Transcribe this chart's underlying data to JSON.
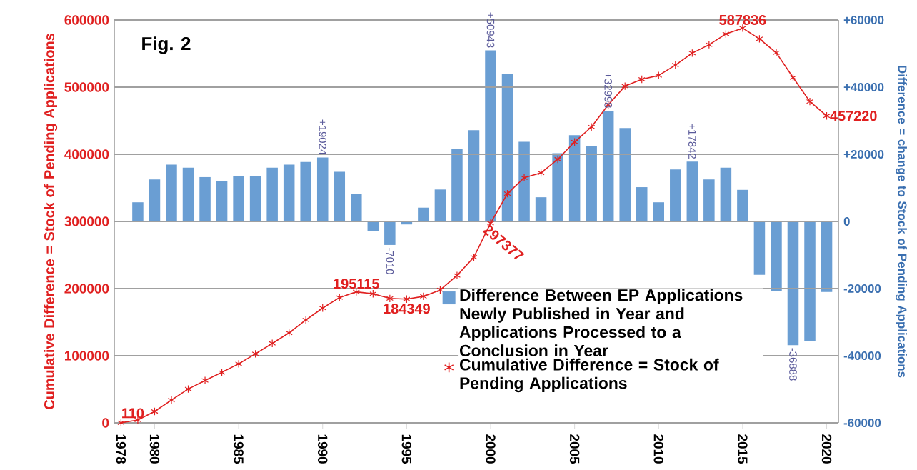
{
  "chart_data": {
    "type": "line",
    "title": "Fig. 2",
    "ylabel": "Cumulative Difference = Stock of Pending Applications",
    "y2label": "Difference = change to Stock of Pending Applications",
    "xlim": [
      1977.6,
      2020.7
    ],
    "xticks": [
      1978,
      1980,
      1985,
      1990,
      1995,
      2000,
      2005,
      2010,
      2015,
      2020
    ],
    "ylim": [
      0,
      600000
    ],
    "yticks": [
      0,
      100000,
      200000,
      300000,
      400000,
      500000,
      600000
    ],
    "y2lim": [
      -60000,
      60000
    ],
    "y2ticks": [
      {
        "value": -60000,
        "label": "-60000"
      },
      {
        "value": -40000,
        "label": "-40000"
      },
      {
        "value": -20000,
        "label": "-20000"
      },
      0,
      {
        "value": 20000,
        "label": "+20000"
      },
      {
        "value": 40000,
        "label": "+40000"
      },
      {
        "value": 60000,
        "label": "+60000"
      }
    ],
    "grid": "y",
    "legend": "bottom",
    "series": [
      {
        "name": "Difference Between EP Applications Newly Published in Year and Applications Processed to a Conclusion in Year",
        "type": "bar",
        "axis": "y2",
        "color": "#6a9ed3",
        "x": [
          1979,
          1980,
          1981,
          1982,
          1983,
          1984,
          1985,
          1986,
          1987,
          1988,
          1989,
          1990,
          1991,
          1992,
          1993,
          1994,
          1995,
          1996,
          1997,
          1998,
          1999,
          2000,
          2001,
          2002,
          2003,
          2004,
          2005,
          2006,
          2007,
          2008,
          2009,
          2010,
          2011,
          2012,
          2013,
          2014,
          2015,
          2016,
          2017,
          2018,
          2019,
          2020
        ],
        "values": [
          5700,
          12500,
          16900,
          16000,
          13200,
          11900,
          13600,
          13600,
          16000,
          16900,
          17700,
          19024,
          14800,
          8100,
          -2800,
          -7010,
          -900,
          4100,
          9500,
          21600,
          27200,
          50943,
          44000,
          23700,
          7200,
          20300,
          25700,
          22400,
          32998,
          27800,
          10200,
          5700,
          15500,
          17842,
          12500,
          16000,
          9400,
          -15900,
          -20700,
          -36888,
          -35700,
          -21000
        ],
        "value_labels": [
          null,
          null,
          null,
          null,
          null,
          null,
          null,
          null,
          null,
          null,
          null,
          "+19024",
          null,
          null,
          null,
          "-7010",
          null,
          null,
          null,
          null,
          null,
          "+50943",
          null,
          null,
          null,
          null,
          null,
          null,
          "+32998",
          null,
          null,
          null,
          null,
          "+17842",
          null,
          null,
          null,
          null,
          null,
          "-36888",
          null,
          null
        ]
      },
      {
        "name": "Cumulative Difference = Stock of Pending Applications",
        "color": "#e02020",
        "marker": "cross",
        "line_style": "solid",
        "x": [
          1978,
          1979,
          1980,
          1981,
          1982,
          1983,
          1984,
          1985,
          1986,
          1987,
          1988,
          1989,
          1990,
          1991,
          1992,
          1993,
          1994,
          1995,
          1996,
          1997,
          1998,
          1999,
          2000,
          2001,
          2002,
          2003,
          2004,
          2005,
          2006,
          2007,
          2008,
          2009,
          2010,
          2011,
          2012,
          2013,
          2014,
          2015,
          2016,
          2017,
          2018,
          2019,
          2020
        ],
        "values": [
          110,
          4300,
          17000,
          34000,
          50400,
          63100,
          75200,
          87900,
          102800,
          118400,
          134000,
          153200,
          171000,
          186500,
          195115,
          192300,
          185300,
          184349,
          188400,
          197900,
          219500,
          246700,
          297377,
          341400,
          365100,
          372300,
          392600,
          418300,
          440700,
          473700,
          501500,
          511700,
          517400,
          532900,
          550700,
          563200,
          579200,
          587836,
          571900,
          551200,
          514300,
          478600,
          457220
        ],
        "value_labels": [
          "110",
          null,
          null,
          null,
          null,
          null,
          null,
          null,
          null,
          null,
          null,
          null,
          null,
          null,
          "195115",
          null,
          null,
          "184349",
          null,
          null,
          null,
          null,
          "297377",
          null,
          null,
          null,
          null,
          null,
          null,
          null,
          null,
          null,
          null,
          null,
          null,
          null,
          null,
          "587836",
          null,
          null,
          null,
          null,
          "457220"
        ]
      }
    ]
  }
}
